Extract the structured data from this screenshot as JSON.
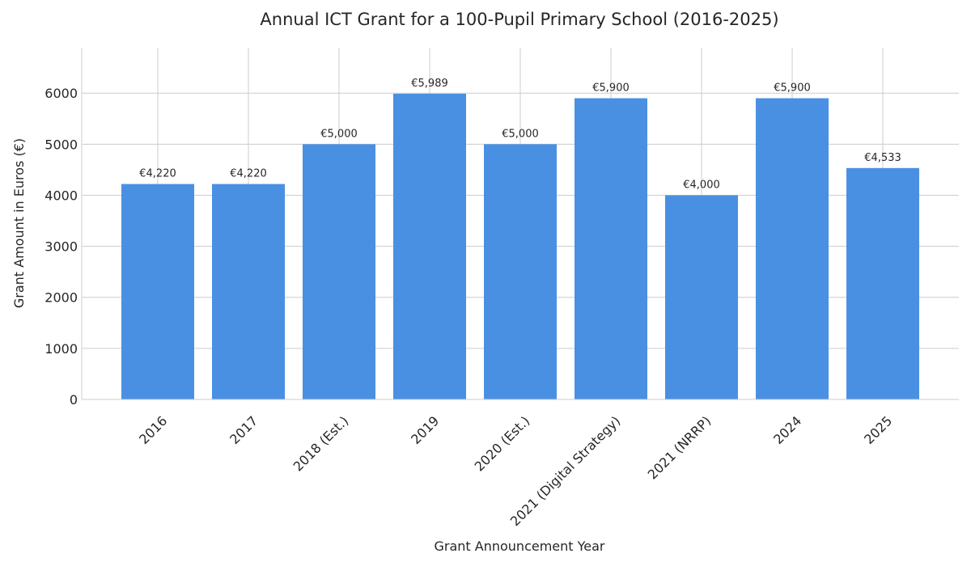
{
  "chart_data": {
    "type": "bar",
    "title": "Annual ICT Grant for a 100-Pupil Primary School (2016-2025)",
    "xlabel": "Grant Announcement Year",
    "ylabel": "Grant Amount in Euros (€)",
    "categories": [
      "2016",
      "2017",
      "2018 (Est.)",
      "2019",
      "2020 (Est.)",
      "2021 (Digital Strategy)",
      "2021 (NRRP)",
      "2024",
      "2025"
    ],
    "values": [
      4220,
      4220,
      5000,
      5989,
      5000,
      5900,
      4000,
      5900,
      4533
    ],
    "data_labels": [
      "€4,220",
      "€4,220",
      "€5,000",
      "€5,989",
      "€5,000",
      "€5,900",
      "€4,000",
      "€5,900",
      "€4,533"
    ],
    "ylim": [
      0,
      6890
    ],
    "yticks": [
      0,
      1000,
      2000,
      3000,
      4000,
      5000,
      6000
    ],
    "grid": true,
    "bar_color": "#4a90e2"
  }
}
